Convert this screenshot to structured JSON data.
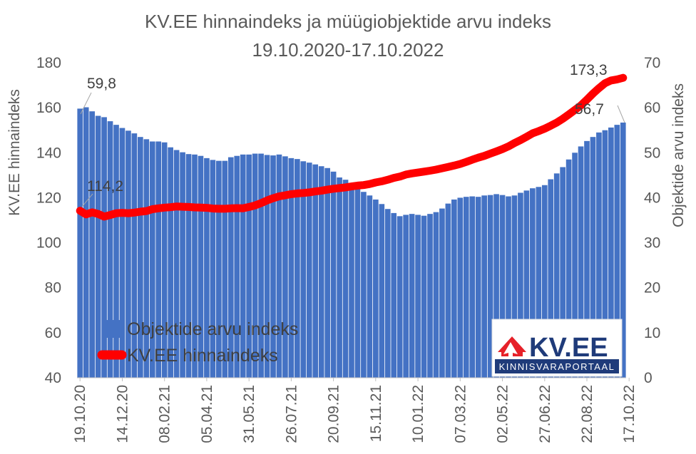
{
  "chart_data": {
    "type": "bar+line",
    "title": "KV.EE hinnaindeks ja müügiobjektide arvu indeks",
    "subtitle": "19.10.2020-17.10.2022",
    "ylabel_left": "KV.EE hinnaindeks",
    "ylabel_right": "Objektide arvu indeks",
    "ylim_left": [
      40,
      180
    ],
    "ylim_right": [
      0,
      70
    ],
    "yticks_left": [
      40,
      60,
      80,
      100,
      120,
      140,
      160,
      180
    ],
    "yticks_right": [
      0,
      10,
      20,
      30,
      40,
      50,
      60,
      70
    ],
    "xtick_labels": [
      "19.10.20",
      "14.12.20",
      "08.02.21",
      "05.04.21",
      "31.05.21",
      "26.07.21",
      "20.09.21",
      "15.11.21",
      "10.01.22",
      "07.03.22",
      "02.05.22",
      "27.06.22",
      "22.08.22",
      "17.10.22"
    ],
    "legend_position": "bottom-left",
    "series": [
      {
        "name": "Objektide arvu indeks",
        "type": "bar",
        "axis": "right",
        "color": "#4472C4",
        "values": [
          59.8,
          60.1,
          59.2,
          58.2,
          57.9,
          57.0,
          56.2,
          55.5,
          54.9,
          54.3,
          53.5,
          53.0,
          52.5,
          52.5,
          52.3,
          51.2,
          50.6,
          50.1,
          49.7,
          49.6,
          49.3,
          48.8,
          48.4,
          48.2,
          48.2,
          49.0,
          49.3,
          49.6,
          49.6,
          49.8,
          49.8,
          49.5,
          49.4,
          49.6,
          49.2,
          48.8,
          48.6,
          48.1,
          47.8,
          47.4,
          47.0,
          46.6,
          45.8,
          44.5,
          44.0,
          43.3,
          42.3,
          41.3,
          40.5,
          39.6,
          38.6,
          37.5,
          36.6,
          35.9,
          36.2,
          36.4,
          36.2,
          36.0,
          36.4,
          36.8,
          37.6,
          38.7,
          39.6,
          40.0,
          40.2,
          40.3,
          40.2,
          40.5,
          40.6,
          40.8,
          40.6,
          40.3,
          40.5,
          41.1,
          41.6,
          42.1,
          42.4,
          42.8,
          44.1,
          45.4,
          46.8,
          48.5,
          50.0,
          51.4,
          52.6,
          53.5,
          54.5,
          55.0,
          55.6,
          56.2,
          56.7
        ],
        "data_labels": {
          "first": "59,8",
          "last": "56,7"
        }
      },
      {
        "name": "KV.EE hinnaindeks",
        "type": "line",
        "axis": "left",
        "color": "#FF0000",
        "values": [
          114.2,
          112.6,
          113.5,
          112.8,
          111.6,
          112.3,
          113.1,
          113.3,
          113.1,
          113.4,
          113.8,
          114.1,
          114.9,
          115.3,
          115.6,
          115.8,
          116.1,
          116.0,
          115.9,
          115.7,
          115.6,
          115.5,
          115.2,
          115.1,
          115.1,
          115.3,
          115.4,
          115.3,
          115.9,
          116.6,
          117.6,
          118.8,
          119.8,
          120.6,
          121.1,
          121.6,
          121.9,
          122.1,
          122.4,
          122.8,
          123.1,
          123.6,
          124.0,
          124.3,
          124.6,
          125.0,
          125.4,
          125.6,
          126.1,
          126.8,
          127.3,
          128.0,
          128.8,
          129.4,
          130.3,
          130.8,
          131.2,
          131.6,
          132.0,
          132.5,
          133.1,
          133.7,
          134.3,
          135.0,
          135.9,
          136.9,
          137.8,
          138.6,
          139.6,
          140.6,
          141.6,
          142.8,
          144.3,
          145.6,
          147.1,
          148.6,
          149.6,
          150.7,
          152.0,
          153.4,
          155.1,
          157.0,
          159.0,
          161.0,
          163.6,
          166.3,
          168.7,
          170.9,
          172.1,
          172.6,
          173.3
        ],
        "data_labels": {
          "first": "114,2",
          "last": "173,3"
        }
      }
    ]
  },
  "logo": {
    "brand": "KV.EE",
    "tagline": "KINNISVARAPORTAAL"
  }
}
